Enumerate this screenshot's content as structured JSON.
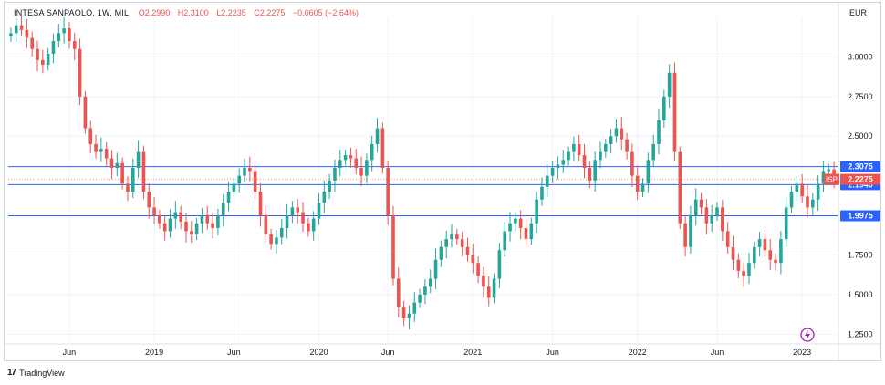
{
  "header": {
    "symbol": "INTESA SANPAOLO, 1W, MIL",
    "open": "O2.2990",
    "high": "H2.3100",
    "low": "L2.2235",
    "close": "C2.2275",
    "change": "−0.0605 (−2.64%)"
  },
  "currency": "EUR",
  "footer": {
    "logo_glyph": "17",
    "brand": "TradingView"
  },
  "colors": {
    "up": "#26a69a",
    "down": "#ef5350",
    "level_line": "#2962ff",
    "level_tag": "#2962ff",
    "price_tag": "#ef5350"
  },
  "chart_data": {
    "type": "candlestick",
    "ylim": [
      1.2,
      3.25
    ],
    "yticks": [
      "3.0000",
      "2.7500",
      "2.5000",
      "1.7500",
      "1.5000",
      "1.2500"
    ],
    "xticks": [
      "Jun",
      "2019",
      "Jun",
      "2020",
      "Jun",
      "2021",
      "Jun",
      "2022",
      "Jun",
      "2023"
    ],
    "horizontal_levels": [
      {
        "value": 2.3075,
        "label": "2.3075"
      },
      {
        "value": 2.194,
        "label": "2.1940"
      },
      {
        "value": 1.9975,
        "label": "1.9975"
      }
    ],
    "last_price": {
      "symbol_tag": "ISP",
      "value": 2.2275,
      "label": "2.2275"
    },
    "series_close": [
      3.15,
      3.2,
      3.17,
      3.12,
      3.05,
      2.98,
      2.95,
      3.02,
      3.1,
      3.15,
      3.18,
      3.1,
      3.05,
      2.75,
      2.55,
      2.45,
      2.4,
      2.42,
      2.36,
      2.3,
      2.33,
      2.2,
      2.15,
      2.3,
      2.4,
      2.15,
      2.05,
      2.0,
      1.95,
      1.9,
      1.98,
      2.02,
      1.96,
      1.9,
      1.88,
      1.95,
      2.0,
      1.95,
      1.92,
      2.0,
      2.08,
      2.15,
      2.2,
      2.25,
      2.3,
      2.28,
      2.15,
      2.0,
      1.88,
      1.82,
      1.86,
      1.92,
      2.0,
      2.05,
      2.02,
      1.95,
      1.9,
      1.98,
      2.08,
      2.15,
      2.22,
      2.3,
      2.35,
      2.38,
      2.36,
      2.3,
      2.25,
      2.35,
      2.45,
      2.55,
      2.3,
      2.0,
      1.6,
      1.42,
      1.35,
      1.38,
      1.45,
      1.5,
      1.55,
      1.6,
      1.72,
      1.8,
      1.85,
      1.88,
      1.85,
      1.8,
      1.75,
      1.7,
      1.62,
      1.55,
      1.48,
      1.6,
      1.78,
      1.9,
      1.95,
      1.98,
      1.92,
      1.85,
      1.95,
      2.1,
      2.18,
      2.25,
      2.3,
      2.32,
      2.35,
      2.4,
      2.45,
      2.38,
      2.3,
      2.22,
      2.35,
      2.4,
      2.45,
      2.5,
      2.55,
      2.48,
      2.4,
      2.25,
      2.15,
      2.2,
      2.35,
      2.45,
      2.6,
      2.75,
      2.9,
      2.4,
      1.95,
      1.8,
      2.0,
      2.1,
      2.05,
      1.95,
      2.0,
      2.05,
      1.9,
      1.8,
      1.72,
      1.65,
      1.62,
      1.7,
      1.8,
      1.85,
      1.78,
      1.72,
      1.7,
      1.85,
      2.05,
      2.15,
      2.2,
      2.12,
      2.05,
      2.1,
      2.2,
      2.28,
      2.29,
      2.23
    ],
    "xtick_index": [
      11,
      27,
      42,
      58,
      71,
      87,
      102,
      118,
      133,
      149
    ]
  }
}
